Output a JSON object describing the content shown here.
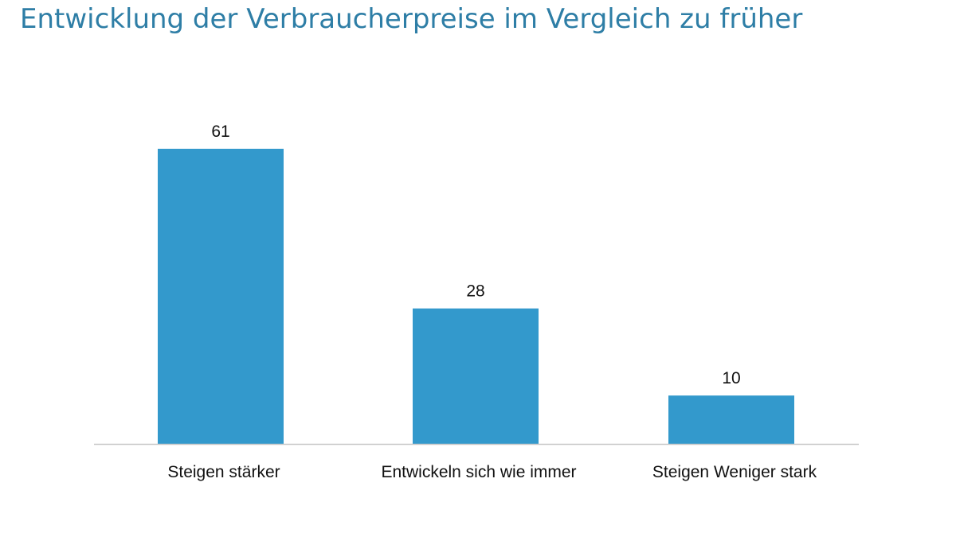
{
  "chart_data": {
    "type": "bar",
    "title": "Entwicklung der Verbraucherpreise im Vergleich zu früher",
    "categories": [
      "Steigen stärker",
      "Entwickeln sich wie immer",
      "Steigen Weniger stark"
    ],
    "values": [
      61,
      28,
      10
    ],
    "data_labels": [
      "61",
      "28",
      "10"
    ],
    "xlabel": "",
    "ylabel": "",
    "ylim": [
      0,
      61
    ],
    "grid": false,
    "legend": "none",
    "bar_color": "#3399cc",
    "axis_color": "#c8c8c8",
    "title_color": "#2e7ea6"
  }
}
